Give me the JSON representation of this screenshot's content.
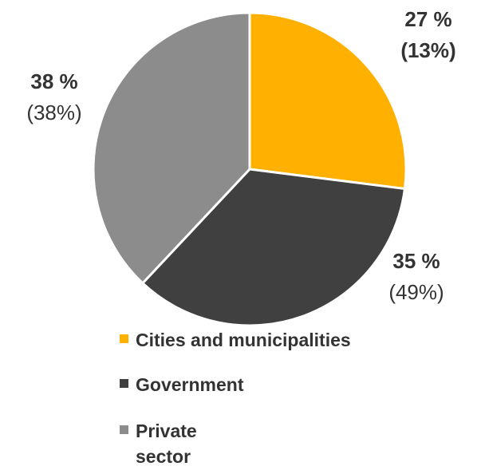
{
  "chart_data": {
    "type": "pie",
    "title": "",
    "slices": [
      {
        "name": "Cities and municipalities",
        "value": 27,
        "label": "27 %",
        "sublabel": "(13%)",
        "sublabel_bold": true,
        "color": "#FFB000"
      },
      {
        "name": "Government",
        "value": 35,
        "label": "35 %",
        "sublabel": "(49%)",
        "sublabel_bold": false,
        "color": "#404041"
      },
      {
        "name": "Private sector",
        "value": 38,
        "label": "38 %",
        "sublabel": "(38%)",
        "sublabel_bold": false,
        "color": "#8C8C8C"
      }
    ],
    "legend": [
      {
        "lines": [
          "Cities and municipalities"
        ],
        "color": "#FFB000"
      },
      {
        "lines": [
          "Government"
        ],
        "color": "#404041"
      },
      {
        "lines": [
          "Private",
          "sector"
        ],
        "color": "#8C8C8C"
      }
    ],
    "legend_position": "bottom",
    "start_angle": "12 o'clock",
    "direction": "clockwise"
  }
}
